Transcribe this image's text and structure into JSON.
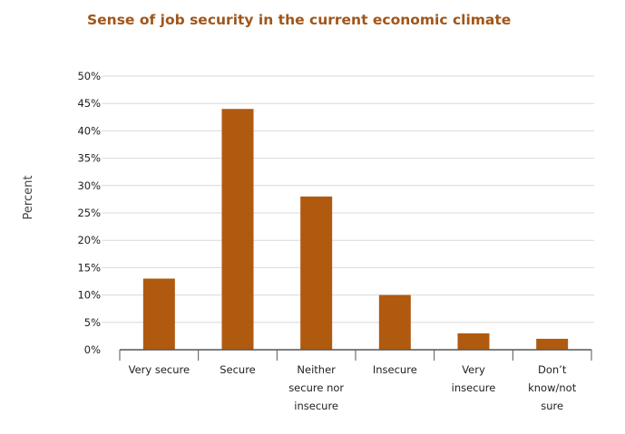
{
  "chart_data": {
    "type": "bar",
    "title": "Sense of job security in the current economic climate",
    "ylabel": "Percent",
    "xlabel": "",
    "ylim": [
      0,
      50
    ],
    "ytick_step": 5,
    "ytick_suffix": "%",
    "grid": true,
    "categories": [
      [
        "Very secure"
      ],
      [
        "Secure"
      ],
      [
        "Neither",
        "secure nor",
        "insecure"
      ],
      [
        "Insecure"
      ],
      [
        "Very",
        "insecure"
      ],
      [
        "Don’t",
        "know/not",
        "sure"
      ]
    ],
    "values": [
      13,
      44,
      28,
      10,
      3,
      2
    ],
    "colors": {
      "bar": "#B05A10",
      "title": "#A0561A",
      "grid": "#d9d9d9",
      "axis": "#555555"
    }
  }
}
